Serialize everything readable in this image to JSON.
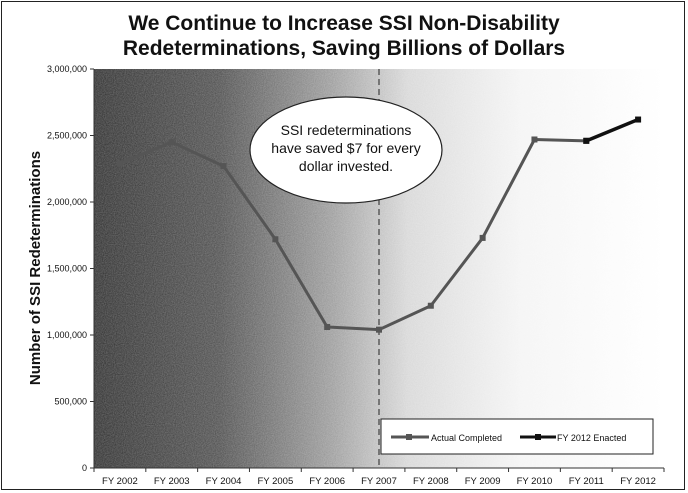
{
  "chart_data": {
    "type": "line",
    "title_lines": [
      "We Continue to Increase SSI Non-Disability",
      "Redeterminations, Saving Billions of Dollars"
    ],
    "xlabel": "",
    "ylabel": "Number of SSI Redeterminations",
    "categories": [
      "FY 2002",
      "FY 2003",
      "FY 2004",
      "FY 2005",
      "FY 2006",
      "FY 2007",
      "FY 2008",
      "FY 2009",
      "FY 2010",
      "FY 2011",
      "FY 2012"
    ],
    "ylim": [
      0,
      3000000
    ],
    "yticks": [
      0,
      500000,
      1000000,
      1500000,
      2000000,
      2500000,
      3000000
    ],
    "ytick_labels": [
      "0",
      "500,000",
      "1,000,000",
      "1,500,000",
      "2,000,000",
      "2,500,000",
      "3,000,000"
    ],
    "series": [
      {
        "name": "Actual Completed",
        "color": "#555555",
        "values": [
          2290000,
          2450000,
          2270000,
          1720000,
          1060000,
          1040000,
          1220000,
          1730000,
          2470000,
          2460000,
          null
        ]
      },
      {
        "name": "FY 2012 Enacted",
        "color": "#111111",
        "values": [
          null,
          null,
          null,
          null,
          null,
          null,
          null,
          null,
          null,
          2460000,
          2620000
        ]
      }
    ],
    "divider_at": "FY 2007",
    "annotation": {
      "lines": [
        "SSI redeterminations",
        "have saved $7 for every",
        "dollar invested."
      ]
    },
    "legend_position": "bottom-right",
    "grid": false
  }
}
